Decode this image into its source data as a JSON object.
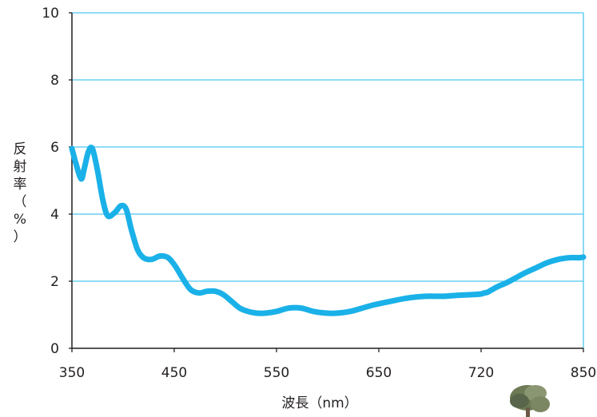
{
  "chart_data": {
    "type": "line",
    "xlabel": "波長（nm）",
    "ylabel_chars": [
      "反",
      "射",
      "率",
      "（",
      "%",
      "）"
    ],
    "x_tick_labels": [
      "350",
      "450",
      "550",
      "650",
      "720",
      "850"
    ],
    "y_ticks": [
      0,
      2,
      4,
      6,
      8,
      10
    ],
    "ylim": [
      0,
      10
    ],
    "grid": true,
    "line_color": "#1ab1e8",
    "grid_color": "#4cc6ef",
    "series": [
      {
        "x": [
          350,
          354,
          359,
          362,
          366,
          370,
          375,
          380,
          385,
          392,
          398,
          403,
          408,
          414,
          420,
          428,
          436,
          444,
          451,
          458,
          466,
          474,
          482,
          490,
          498,
          506,
          514,
          522,
          530,
          540,
          550,
          562,
          574,
          586,
          598,
          610,
          622,
          634,
          646,
          658,
          670,
          682,
          694,
          704,
          714,
          720,
          724,
          728,
          734,
          742,
          752,
          764,
          776,
          790,
          804,
          818,
          832,
          844,
          850
        ],
        "y": [
          5.95,
          5.5,
          5.05,
          5.35,
          5.85,
          5.95,
          5.3,
          4.45,
          3.95,
          4.05,
          4.25,
          4.15,
          3.55,
          2.95,
          2.7,
          2.65,
          2.75,
          2.7,
          2.45,
          2.1,
          1.75,
          1.65,
          1.7,
          1.7,
          1.6,
          1.4,
          1.2,
          1.1,
          1.05,
          1.05,
          1.1,
          1.2,
          1.2,
          1.1,
          1.05,
          1.05,
          1.1,
          1.2,
          1.3,
          1.4,
          1.5,
          1.55,
          1.55,
          1.58,
          1.6,
          1.62,
          1.65,
          1.67,
          1.75,
          1.85,
          1.95,
          2.1,
          2.25,
          2.4,
          2.55,
          2.65,
          2.7,
          2.7,
          2.72
        ]
      }
    ]
  }
}
